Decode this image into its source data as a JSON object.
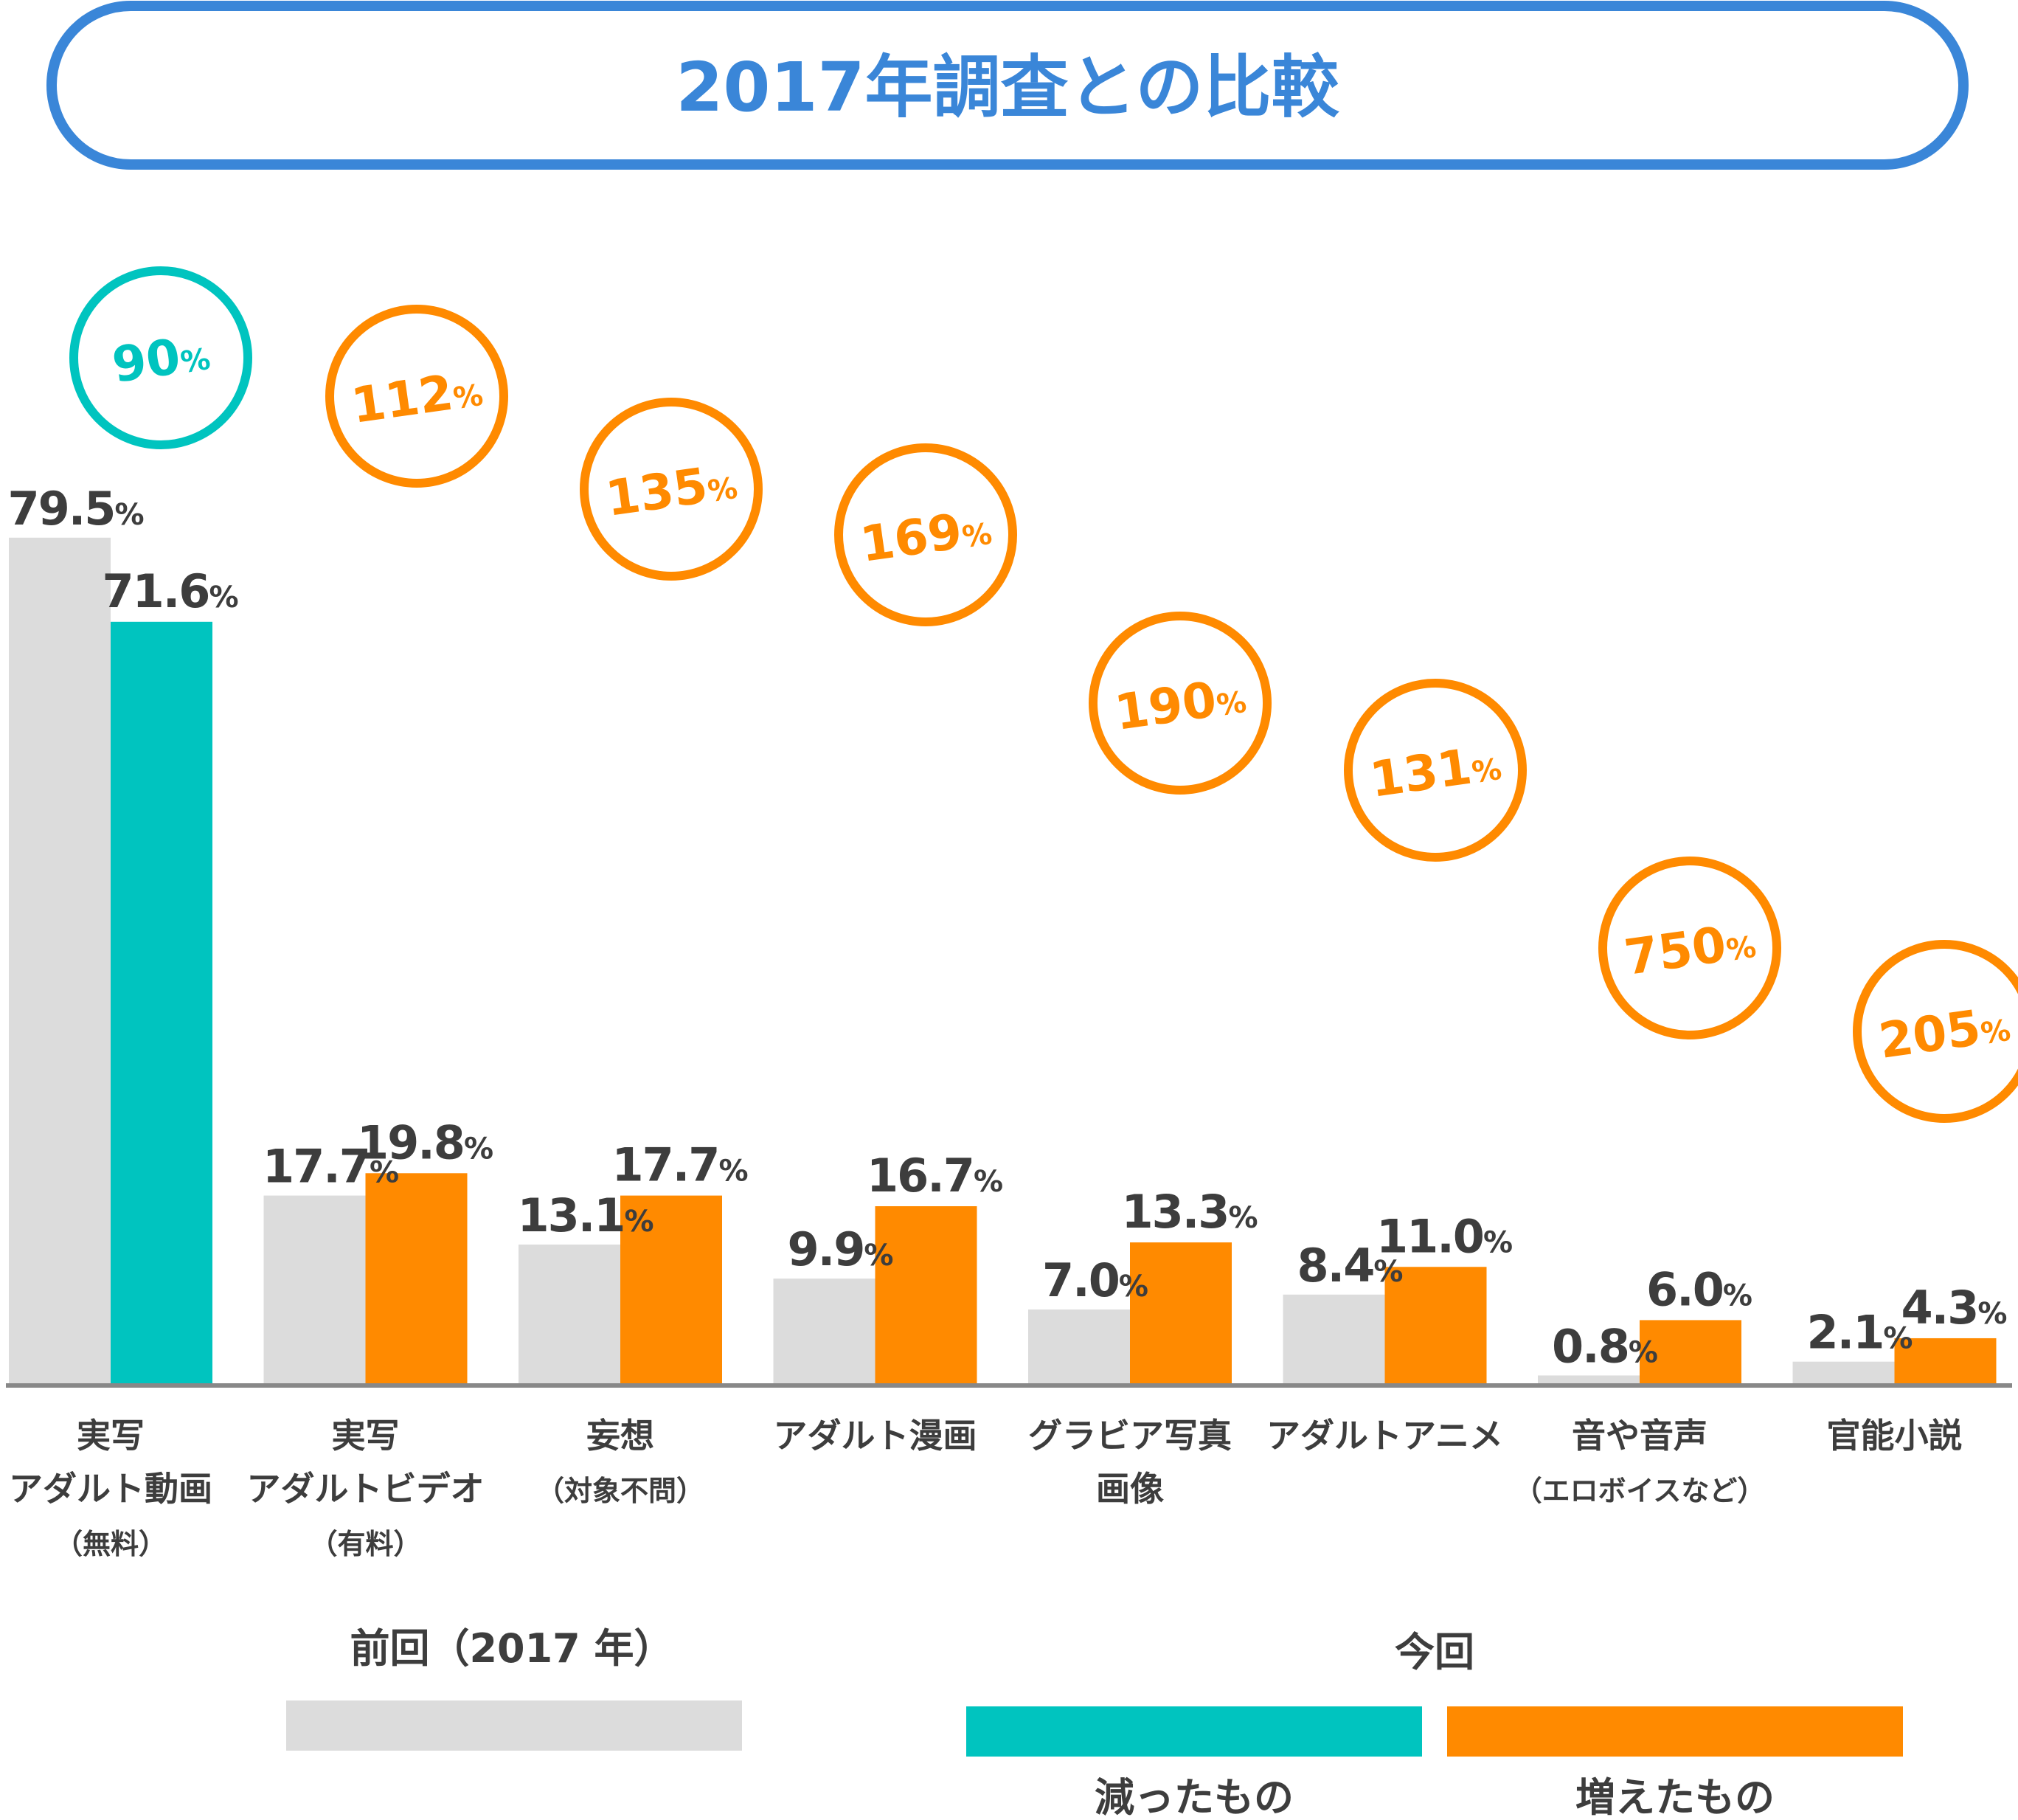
{
  "title": "2017年調査との比較",
  "colors": {
    "previous": "#dcdcdc",
    "decreased": "#00c4bf",
    "increased": "#ff8a00",
    "title": "#3a86d8",
    "text": "#3d3d3d",
    "axis": "#888888"
  },
  "chart_data": {
    "type": "bar",
    "title": "2017年調査との比較",
    "ylim": [
      0,
      80
    ],
    "grid": false,
    "legend_placement": "bottom",
    "unit": "%",
    "categories": [
      {
        "lines": [
          "実写",
          "アダルト動画",
          "（無料）"
        ]
      },
      {
        "lines": [
          "実写",
          "アダルトビデオ",
          "（有料）"
        ]
      },
      {
        "lines": [
          "妄想",
          "（対象不問）"
        ]
      },
      {
        "lines": [
          "アダルト漫画"
        ]
      },
      {
        "lines": [
          "グラビア写真",
          "画像"
        ]
      },
      {
        "lines": [
          "アダルトアニメ"
        ]
      },
      {
        "lines": [
          "音や音声",
          "（エロボイスなど）"
        ]
      },
      {
        "lines": [
          "官能小説"
        ]
      }
    ],
    "series": [
      {
        "name": "前回（2017 年）",
        "values": [
          79.5,
          17.7,
          13.1,
          9.9,
          7.0,
          8.4,
          0.8,
          2.1
        ],
        "labels": [
          "79.5",
          "17.7",
          "13.1",
          "9.9",
          "7.0",
          "8.4",
          "0.8",
          "2.1"
        ]
      },
      {
        "name": "今回",
        "values": [
          71.6,
          19.8,
          17.7,
          16.7,
          13.3,
          11.0,
          6.0,
          4.3
        ],
        "labels": [
          "71.6",
          "19.8",
          "17.7",
          "16.7",
          "13.3",
          "11.0",
          "6.0",
          "4.3"
        ]
      }
    ],
    "ratios": [
      "90",
      "112",
      "135",
      "169",
      "190",
      "131",
      "750",
      "205"
    ],
    "ratio_direction": [
      "decreased",
      "increased",
      "increased",
      "increased",
      "increased",
      "increased",
      "increased",
      "increased"
    ]
  },
  "legend": {
    "previous_label": "前回（2017 年）",
    "current_label": "今回",
    "decreased_label": "減ったもの",
    "increased_label": "増えたもの"
  }
}
